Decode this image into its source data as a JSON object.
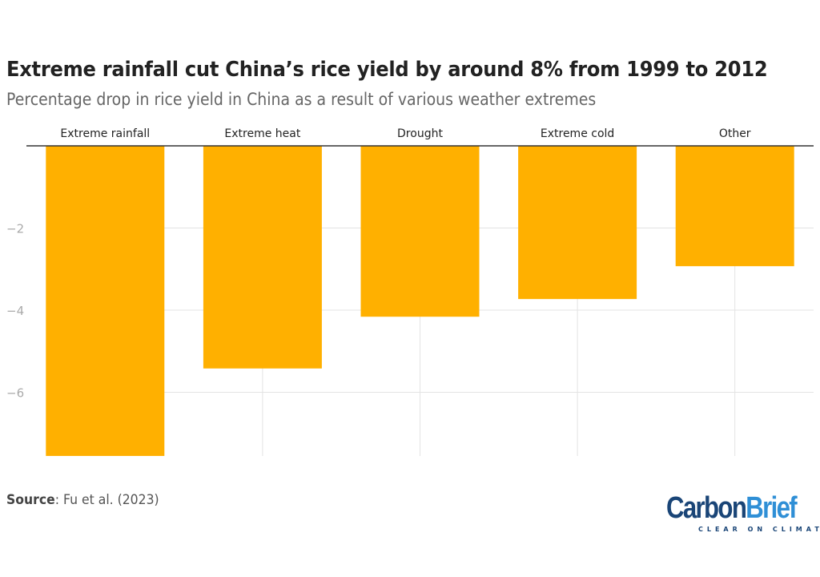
{
  "title": "Extreme rainfall cut China’s rice yield by around 8% from 1999 to 2012",
  "subtitle": "Percentage drop in rice yield in China as a result of various weather extremes",
  "source_label": "Source",
  "source_text": ": Fu et al. (2023)",
  "logo": {
    "part1": "Carbon",
    "part2": "Brief",
    "tagline": "CLEAR ON CLIMATE"
  },
  "chart_data": {
    "type": "bar",
    "categories": [
      "Extreme rainfall",
      "Extreme heat",
      "Drought",
      "Extreme cold",
      "Other"
    ],
    "values": [
      -7.55,
      -5.42,
      -4.16,
      -3.73,
      -2.93
    ],
    "ylim": [
      -7.55,
      0
    ],
    "yticks": [
      -2,
      -4,
      -6
    ],
    "ytick_labels": [
      "−2",
      "−4",
      "−6"
    ],
    "category_axis": "top",
    "grid": true,
    "bar_color": "#ffb000"
  }
}
